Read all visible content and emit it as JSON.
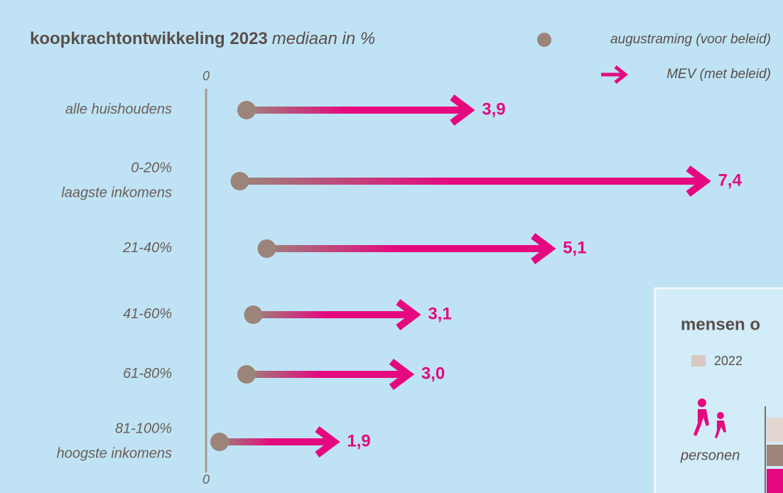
{
  "chart_data": {
    "type": "arrow",
    "title": "koopkrachtontwikkeling 2023",
    "subtitle": "mediaan in %",
    "categories": [
      [
        "alle huishoudens"
      ],
      [
        "0-20%",
        "laagste inkomens"
      ],
      [
        "21-40%"
      ],
      [
        "41-60%"
      ],
      [
        "61-80%"
      ],
      [
        "81-100%",
        "hoogste inkomens"
      ]
    ],
    "series": [
      {
        "name": "augustraming (voor beleid)",
        "color": "#9c847a",
        "values": [
          0.6,
          0.5,
          0.9,
          0.7,
          0.6,
          0.2
        ]
      },
      {
        "name": "MEV (met beleid)",
        "color": "#e5097f",
        "values": [
          3.9,
          7.4,
          5.1,
          3.1,
          3.0,
          1.9
        ],
        "value_labels": [
          "3,9",
          "7,4",
          "5,1",
          "3,1",
          "3,0",
          "1,9"
        ]
      }
    ],
    "xlim": [
      0,
      8.5
    ],
    "xticks": [
      0
    ]
  },
  "inset": {
    "title": "mensen o",
    "legend": "2022",
    "label": "personen"
  }
}
